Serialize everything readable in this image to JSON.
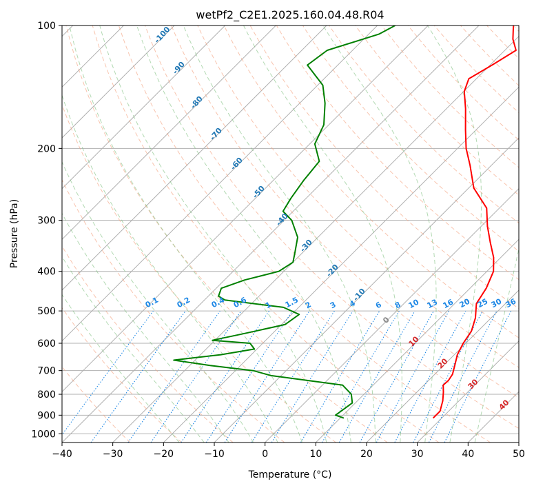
{
  "chart_data": {
    "type": "skew-t",
    "title": "wetPf2_C2E1.2025.160.04.48.R04",
    "xlabel": "Temperature (°C)",
    "ylabel": "Pressure (hPa)",
    "xlim": [
      -40,
      50
    ],
    "ylim": [
      1050,
      100
    ],
    "y_scale": "log",
    "x_ticks": [
      "−40",
      "−30",
      "−20",
      "−10",
      "0",
      "10",
      "20",
      "30",
      "40",
      "50"
    ],
    "y_ticks": [
      "100",
      "200",
      "300",
      "400",
      "500",
      "600",
      "700",
      "800",
      "900",
      "1000"
    ],
    "grid": true,
    "colors": {
      "temperature": "#ff0000",
      "dewpoint": "#008000",
      "isotherms": "#b0b0b0",
      "dry_adiabats": "#f4a582",
      "moist_adiabats": "#7fbf7f",
      "mixing_ratio": "#1e88e5",
      "isotherm_labels": "#1f77b4",
      "dry_adiabat_labels": "#d62728",
      "moist_adiabat_label": "#888888"
    },
    "isotherm_labels": [
      {
        "text": "-100",
        "value": -100
      },
      {
        "text": "-90",
        "value": -90
      },
      {
        "text": "-80",
        "value": -80
      },
      {
        "text": "-70",
        "value": -70
      },
      {
        "text": "-60",
        "value": -60
      },
      {
        "text": "-50",
        "value": -50
      },
      {
        "text": "-40",
        "value": -40
      },
      {
        "text": "-30",
        "value": -30
      },
      {
        "text": "-20",
        "value": -20
      },
      {
        "text": "-10",
        "value": -10
      }
    ],
    "mixing_ratio_labels": [
      "0.1",
      "0.2",
      "0.4",
      "0.6",
      "1",
      "1.5",
      "2",
      "3",
      "4",
      "6",
      "8",
      "10",
      "13",
      "16",
      "20",
      "25",
      "30",
      "36"
    ],
    "mixing_ratio_values": [
      0.1,
      0.2,
      0.4,
      0.6,
      1,
      1.5,
      2,
      3,
      4,
      6,
      8,
      10,
      13,
      16,
      20,
      25,
      30,
      36
    ],
    "dry_adiabat_labels": [
      "10",
      "20",
      "30",
      "40"
    ],
    "moist_adiabat_label": "0",
    "temperature": [
      {
        "p": 915,
        "t": 28.3
      },
      {
        "p": 880,
        "t": 28.3
      },
      {
        "p": 830,
        "t": 26.8
      },
      {
        "p": 790,
        "t": 25.2
      },
      {
        "p": 760,
        "t": 23.8
      },
      {
        "p": 740,
        "t": 23.9
      },
      {
        "p": 715,
        "t": 23.5
      },
      {
        "p": 680,
        "t": 22.2
      },
      {
        "p": 640,
        "t": 20.6
      },
      {
        "p": 600,
        "t": 19.5
      },
      {
        "p": 560,
        "t": 18.7
      },
      {
        "p": 520,
        "t": 16.9
      },
      {
        "p": 480,
        "t": 14.3
      },
      {
        "p": 440,
        "t": 13.2
      },
      {
        "p": 400,
        "t": 11.3
      },
      {
        "p": 370,
        "t": 8.6
      },
      {
        "p": 340,
        "t": 5.0
      },
      {
        "p": 310,
        "t": 1.2
      },
      {
        "p": 280,
        "t": -2.5
      },
      {
        "p": 250,
        "t": -9.0
      },
      {
        "p": 220,
        "t": -14.2
      },
      {
        "p": 200,
        "t": -18.3
      },
      {
        "p": 180,
        "t": -22.1
      },
      {
        "p": 160,
        "t": -26.2
      },
      {
        "p": 145,
        "t": -29.9
      },
      {
        "p": 135,
        "t": -31.5
      },
      {
        "p": 125,
        "t": -29.6
      },
      {
        "p": 115,
        "t": -27.8
      },
      {
        "p": 108,
        "t": -30.6
      },
      {
        "p": 100,
        "t": -33.2
      }
    ],
    "dewpoint": [
      {
        "p": 915,
        "t": 10.7
      },
      {
        "p": 900,
        "t": 8.5
      },
      {
        "p": 880,
        "t": 8.8
      },
      {
        "p": 840,
        "t": 9.4
      },
      {
        "p": 800,
        "t": 7.5
      },
      {
        "p": 760,
        "t": 4.0
      },
      {
        "p": 720,
        "t": -12.0
      },
      {
        "p": 700,
        "t": -16.5
      },
      {
        "p": 680,
        "t": -26.0
      },
      {
        "p": 660,
        "t": -34.2
      },
      {
        "p": 640,
        "t": -26.0
      },
      {
        "p": 620,
        "t": -20.5
      },
      {
        "p": 600,
        "t": -22.5
      },
      {
        "p": 590,
        "t": -30.5
      },
      {
        "p": 570,
        "t": -26.0
      },
      {
        "p": 540,
        "t": -19.3
      },
      {
        "p": 510,
        "t": -18.5
      },
      {
        "p": 490,
        "t": -23.0
      },
      {
        "p": 470,
        "t": -36.0
      },
      {
        "p": 460,
        "t": -38.0
      },
      {
        "p": 440,
        "t": -39.0
      },
      {
        "p": 420,
        "t": -36.0
      },
      {
        "p": 400,
        "t": -31.0
      },
      {
        "p": 380,
        "t": -30.0
      },
      {
        "p": 360,
        "t": -31.5
      },
      {
        "p": 330,
        "t": -34.0
      },
      {
        "p": 300,
        "t": -38.5
      },
      {
        "p": 285,
        "t": -42.0
      },
      {
        "p": 265,
        "t": -43.0
      },
      {
        "p": 240,
        "t": -44.0
      },
      {
        "p": 215,
        "t": -44.7
      },
      {
        "p": 195,
        "t": -49.0
      },
      {
        "p": 175,
        "t": -51.0
      },
      {
        "p": 155,
        "t": -55.0
      },
      {
        "p": 140,
        "t": -59.0
      },
      {
        "p": 125,
        "t": -66.0
      },
      {
        "p": 115,
        "t": -65.0
      },
      {
        "p": 105,
        "t": -58.0
      },
      {
        "p": 100,
        "t": -56.5
      }
    ]
  }
}
